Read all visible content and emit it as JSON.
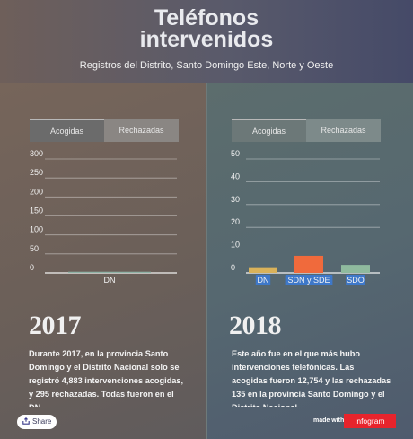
{
  "header": {
    "title_line1": "Teléfonos",
    "title_line2": "intervenidos",
    "subtitle": "Registros del Distrito, Santo Domingo Este, Norte y Oeste"
  },
  "left": {
    "tabs": [
      "Acogidas",
      "Rechazadas"
    ],
    "year": "2017",
    "text": "Durante 2017, en la provincia Santo Domingo y el Distrito Nacional solo se registró 4,883 intervenciones acogidas, y 295 rechazadas. Todas fueron en el DN"
  },
  "right": {
    "tabs": [
      "Acogidas",
      "Rechazadas"
    ],
    "year": "2018",
    "text": "Este año fue en el que más hubo intervenciones telefónicas. Las acogidas fueron 12,754 y las rechazadas 135 en la provincia Santo Domingo y el Distrito Nacional"
  },
  "chart_data": [
    {
      "type": "bar",
      "categories": [
        "DN"
      ],
      "values": [
        3
      ],
      "yticks": [
        0,
        50,
        100,
        150,
        200,
        250,
        300
      ],
      "ylim": [
        0,
        300
      ],
      "colors": [
        "#8fb3a6"
      ]
    },
    {
      "type": "bar",
      "categories": [
        "DN",
        "SDN y SDE",
        "SDO"
      ],
      "values": [
        2.5,
        7.5,
        3.5
      ],
      "yticks": [
        0,
        10,
        20,
        30,
        40,
        50
      ],
      "ylim": [
        0,
        50
      ],
      "colors": [
        "#d9b25a",
        "#f06a3c",
        "#8fba9e"
      ]
    }
  ],
  "footer": {
    "share_label": "Share",
    "made_with": "made with",
    "brand": "infogram"
  }
}
